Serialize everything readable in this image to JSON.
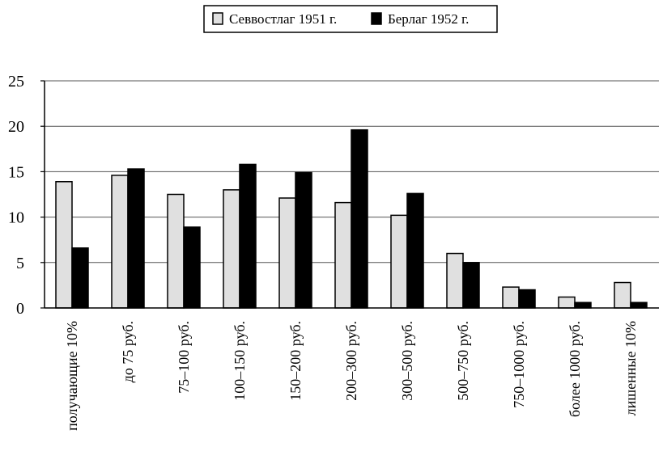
{
  "chart_data": {
    "type": "bar",
    "title": "",
    "xlabel": "",
    "ylabel": "",
    "ylim": [
      0,
      25
    ],
    "yticks": [
      0,
      5,
      10,
      15,
      20,
      25
    ],
    "grid": true,
    "legend_position": "top-center",
    "categories": [
      "получающие 10%",
      "до 75 руб.",
      "75–100 руб.",
      "100–150 руб.",
      "150–200 руб.",
      "200–300 руб.",
      "300–500 руб.",
      "500–750 руб.",
      "750–1000 руб.",
      "более 1000 руб.",
      "лишенные 10%"
    ],
    "series": [
      {
        "name": "Севвостлаг 1951 г.",
        "color": "#e0e0e0",
        "values": [
          13.9,
          14.6,
          12.5,
          13.0,
          12.1,
          11.6,
          10.2,
          6.0,
          2.3,
          1.2,
          2.8
        ]
      },
      {
        "name": "Берлаг 1952 г.",
        "color": "#000000",
        "values": [
          6.6,
          15.3,
          8.9,
          15.8,
          14.9,
          19.6,
          12.6,
          5.0,
          2.0,
          0.6,
          0.6
        ]
      }
    ]
  }
}
